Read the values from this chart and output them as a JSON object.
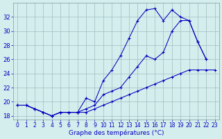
{
  "xlabel": "Graphe des températures (°C)",
  "hours": [
    0,
    1,
    2,
    3,
    4,
    5,
    6,
    7,
    8,
    9,
    10,
    11,
    12,
    13,
    14,
    15,
    16,
    17,
    18,
    19,
    20,
    21,
    22,
    23
  ],
  "line_max": [
    19.5,
    19.5,
    19.0,
    18.5,
    18.0,
    18.5,
    18.5,
    18.5,
    20.5,
    20.0,
    23.0,
    24.5,
    26.5,
    29.0,
    31.5,
    33.0,
    33.2,
    31.5,
    33.0,
    32.0,
    31.5,
    28.5,
    26.0,
    null
  ],
  "line_mid": [
    19.5,
    19.5,
    19.0,
    18.5,
    18.0,
    18.5,
    18.5,
    18.5,
    19.0,
    19.5,
    21.0,
    21.5,
    22.0,
    23.5,
    25.0,
    26.5,
    26.0,
    27.0,
    30.0,
    31.5,
    31.5,
    28.5,
    26.0,
    null
  ],
  "line_min": [
    19.5,
    19.5,
    19.0,
    18.5,
    18.0,
    18.5,
    18.5,
    18.5,
    18.5,
    19.0,
    19.5,
    20.0,
    20.5,
    21.0,
    21.5,
    22.0,
    22.5,
    23.0,
    23.5,
    24.0,
    24.5,
    24.5,
    24.5,
    24.5
  ],
  "ylim": [
    17.5,
    34.0
  ],
  "xlim": [
    -0.5,
    23.5
  ],
  "yticks": [
    18,
    20,
    22,
    24,
    26,
    28,
    30,
    32
  ],
  "line_color": "#0000bb",
  "bg_color": "#d4eeee",
  "grid_color": "#a0bcbc",
  "axis_color": "#7a9a9a",
  "tick_fontsize": 5.5,
  "xlabel_fontsize": 6.5,
  "linewidth": 0.75,
  "markersize": 3.5
}
